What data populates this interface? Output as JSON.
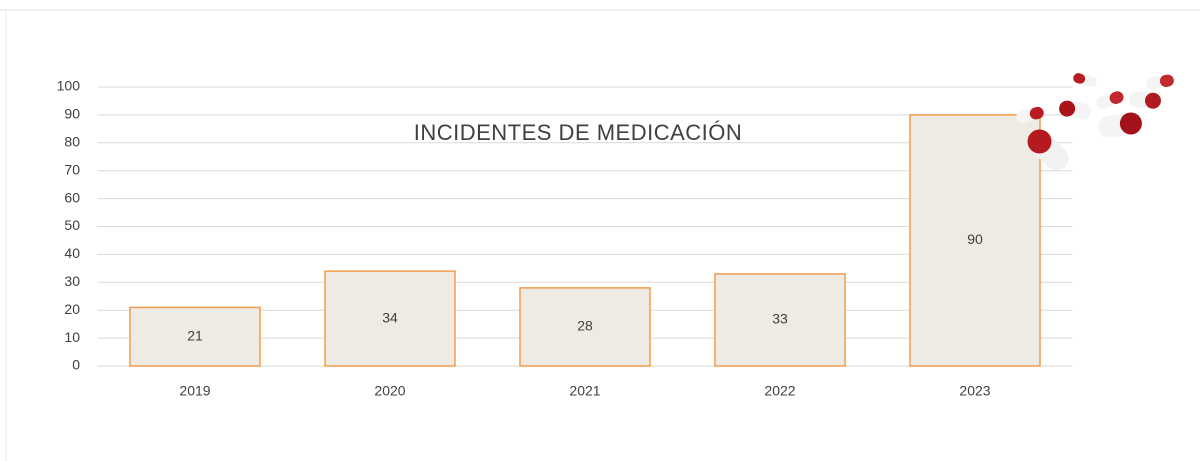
{
  "chart_data": {
    "type": "bar",
    "title": "INCIDENTES DE MEDICACIÓN",
    "categories": [
      "2019",
      "2020",
      "2021",
      "2022",
      "2023"
    ],
    "values": [
      21,
      34,
      28,
      33,
      90
    ],
    "color": "#efebe2",
    "edge_color": "#f29c4b",
    "ylim": [
      0,
      100
    ],
    "yticks": [
      0,
      10,
      20,
      30,
      40,
      50,
      60,
      70,
      80,
      90,
      100
    ],
    "grid": true
  }
}
